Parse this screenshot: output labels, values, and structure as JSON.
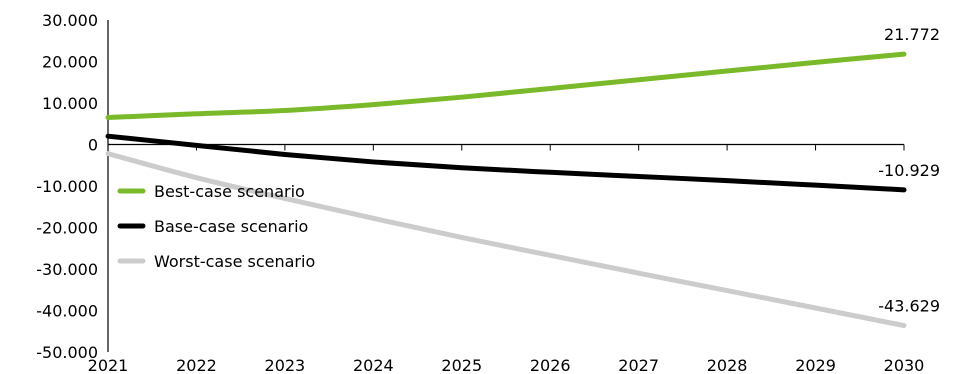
{
  "chart_data": {
    "type": "line",
    "x": [
      "2021",
      "2022",
      "2023",
      "2024",
      "2025",
      "2026",
      "2027",
      "2028",
      "2029",
      "2030"
    ],
    "ylim": [
      -50000,
      30000
    ],
    "y_ticks": [
      30000,
      20000,
      10000,
      0,
      -10000,
      -20000,
      -30000,
      -40000,
      -50000
    ],
    "y_tick_labels": [
      "30.000",
      "20.000",
      "10.000",
      "0",
      "-10.000",
      "-20.000",
      "-30.000",
      "-40.000",
      "-50.000"
    ],
    "grid": false,
    "legend_position": "left",
    "series": [
      {
        "name": "Best-case scenario",
        "color": "#7ab929",
        "values": [
          6500,
          7400,
          8200,
          9600,
          11400,
          13500,
          15600,
          17700,
          19800,
          21772
        ],
        "end_label": "21.772"
      },
      {
        "name": "Base-case scenario",
        "color": "#000000",
        "values": [
          2000,
          -200,
          -2400,
          -4200,
          -5600,
          -6700,
          -7700,
          -8700,
          -9800,
          -10929
        ],
        "end_label": "-10.929"
      },
      {
        "name": "Worst-case scenario",
        "color": "#cccccc",
        "values": [
          -2200,
          -8000,
          -13000,
          -17800,
          -22400,
          -26700,
          -31000,
          -35200,
          -39400,
          -43629
        ],
        "end_label": "-43.629"
      }
    ]
  }
}
